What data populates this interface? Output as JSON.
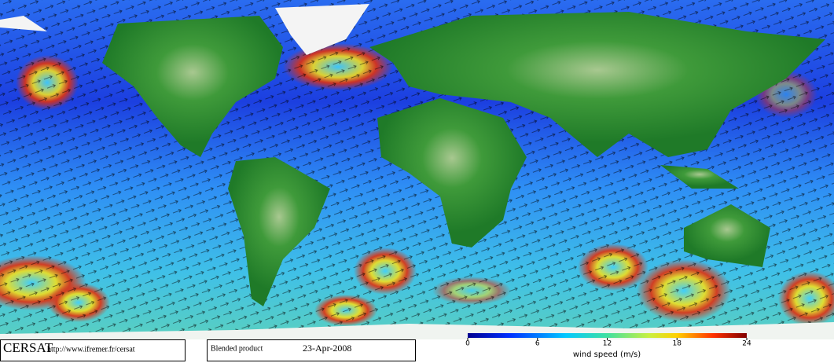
{
  "footer": {
    "logo": "CERSAT",
    "url": "http://www.ifremer.fr/cersat",
    "product": "Blended product",
    "date": "23-Apr-2008"
  },
  "colorbar": {
    "label": "wind speed (m/s)",
    "lim": [
      0,
      24
    ],
    "ticks": [
      0,
      6,
      12,
      18,
      24
    ]
  }
}
